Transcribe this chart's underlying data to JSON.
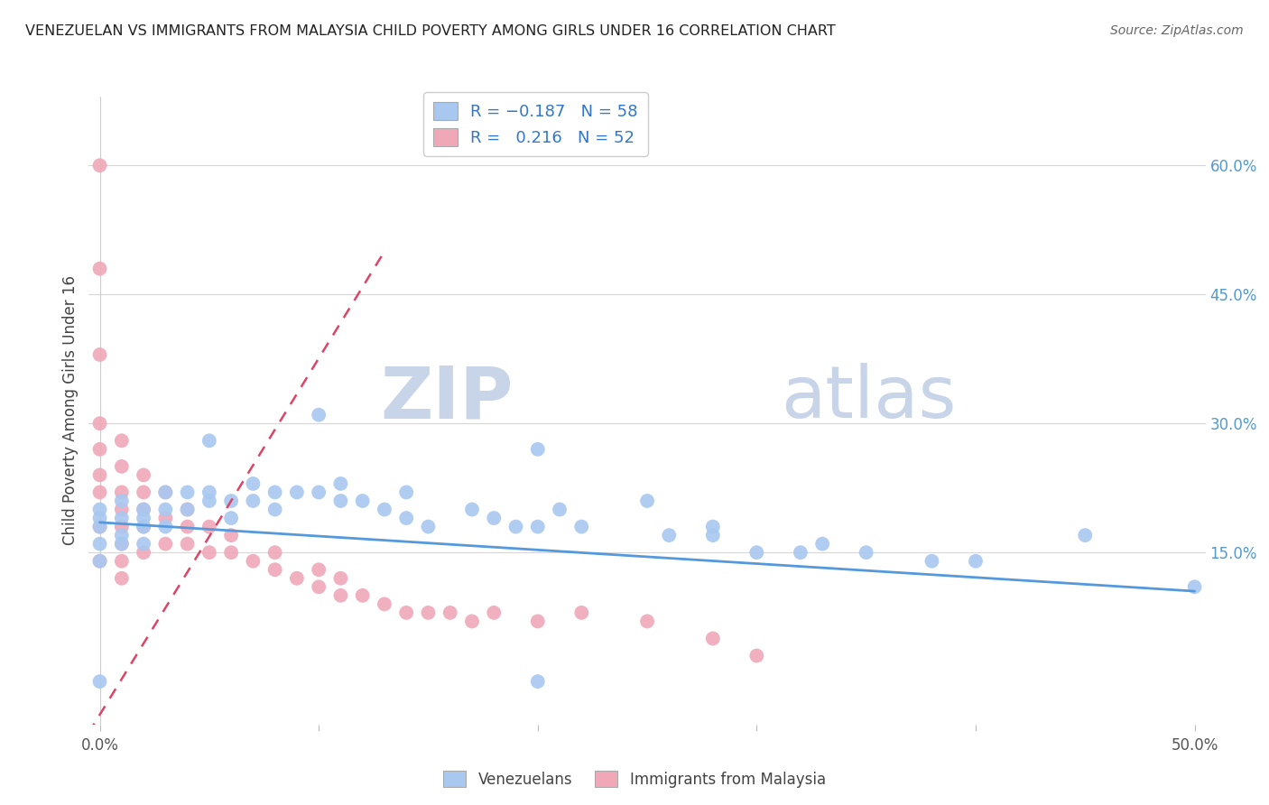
{
  "title": "VENEZUELAN VS IMMIGRANTS FROM MALAYSIA CHILD POVERTY AMONG GIRLS UNDER 16 CORRELATION CHART",
  "source": "Source: ZipAtlas.com",
  "ylabel": "Child Poverty Among Girls Under 16",
  "y_tick_labels_right": [
    "60.0%",
    "45.0%",
    "30.0%",
    "15.0%"
  ],
  "y_ticks_right": [
    0.6,
    0.45,
    0.3,
    0.15
  ],
  "xlim": [
    -0.005,
    0.505
  ],
  "ylim": [
    -0.05,
    0.68
  ],
  "legend_venezuelans": "Venezuelans",
  "legend_malaysia": "Immigrants from Malaysia",
  "R_venezuelan": -0.187,
  "N_venezuelan": 58,
  "R_malaysia": 0.216,
  "N_malaysia": 52,
  "blue_color": "#a8c8f0",
  "pink_color": "#f0a8b8",
  "blue_line_color": "#5599dd",
  "pink_line_color": "#dd4466",
  "grid_color": "#dddddd",
  "venezuelan_x": [
    0.0,
    0.0,
    0.0,
    0.0,
    0.0,
    0.01,
    0.01,
    0.01,
    0.01,
    0.02,
    0.02,
    0.02,
    0.02,
    0.03,
    0.03,
    0.03,
    0.04,
    0.04,
    0.05,
    0.05,
    0.05,
    0.06,
    0.06,
    0.07,
    0.07,
    0.08,
    0.08,
    0.09,
    0.1,
    0.1,
    0.11,
    0.11,
    0.12,
    0.13,
    0.14,
    0.14,
    0.15,
    0.17,
    0.18,
    0.19,
    0.2,
    0.2,
    0.21,
    0.22,
    0.25,
    0.26,
    0.28,
    0.28,
    0.3,
    0.32,
    0.33,
    0.35,
    0.38,
    0.4,
    0.0,
    0.2,
    0.45,
    0.5
  ],
  "venezuelan_y": [
    0.18,
    0.2,
    0.16,
    0.14,
    0.19,
    0.17,
    0.16,
    0.19,
    0.21,
    0.19,
    0.18,
    0.2,
    0.16,
    0.2,
    0.18,
    0.22,
    0.2,
    0.22,
    0.21,
    0.22,
    0.28,
    0.21,
    0.19,
    0.21,
    0.23,
    0.2,
    0.22,
    0.22,
    0.31,
    0.22,
    0.21,
    0.23,
    0.21,
    0.2,
    0.19,
    0.22,
    0.18,
    0.2,
    0.19,
    0.18,
    0.27,
    0.18,
    0.2,
    0.18,
    0.21,
    0.17,
    0.17,
    0.18,
    0.15,
    0.15,
    0.16,
    0.15,
    0.14,
    0.14,
    0.0,
    0.0,
    0.17,
    0.11
  ],
  "malaysia_x": [
    0.0,
    0.0,
    0.0,
    0.0,
    0.0,
    0.0,
    0.0,
    0.0,
    0.0,
    0.01,
    0.01,
    0.01,
    0.01,
    0.01,
    0.01,
    0.01,
    0.01,
    0.02,
    0.02,
    0.02,
    0.02,
    0.02,
    0.03,
    0.03,
    0.03,
    0.04,
    0.04,
    0.04,
    0.05,
    0.05,
    0.06,
    0.06,
    0.07,
    0.08,
    0.08,
    0.09,
    0.1,
    0.1,
    0.11,
    0.11,
    0.12,
    0.13,
    0.14,
    0.15,
    0.16,
    0.17,
    0.18,
    0.2,
    0.22,
    0.25,
    0.28,
    0.3
  ],
  "malaysia_y": [
    0.6,
    0.48,
    0.38,
    0.3,
    0.27,
    0.24,
    0.22,
    0.18,
    0.14,
    0.28,
    0.25,
    0.22,
    0.2,
    0.18,
    0.16,
    0.14,
    0.12,
    0.24,
    0.22,
    0.2,
    0.18,
    0.15,
    0.22,
    0.19,
    0.16,
    0.2,
    0.18,
    0.16,
    0.18,
    0.15,
    0.17,
    0.15,
    0.14,
    0.15,
    0.13,
    0.12,
    0.13,
    0.11,
    0.12,
    0.1,
    0.1,
    0.09,
    0.08,
    0.08,
    0.08,
    0.07,
    0.08,
    0.07,
    0.08,
    0.07,
    0.05,
    0.03
  ]
}
